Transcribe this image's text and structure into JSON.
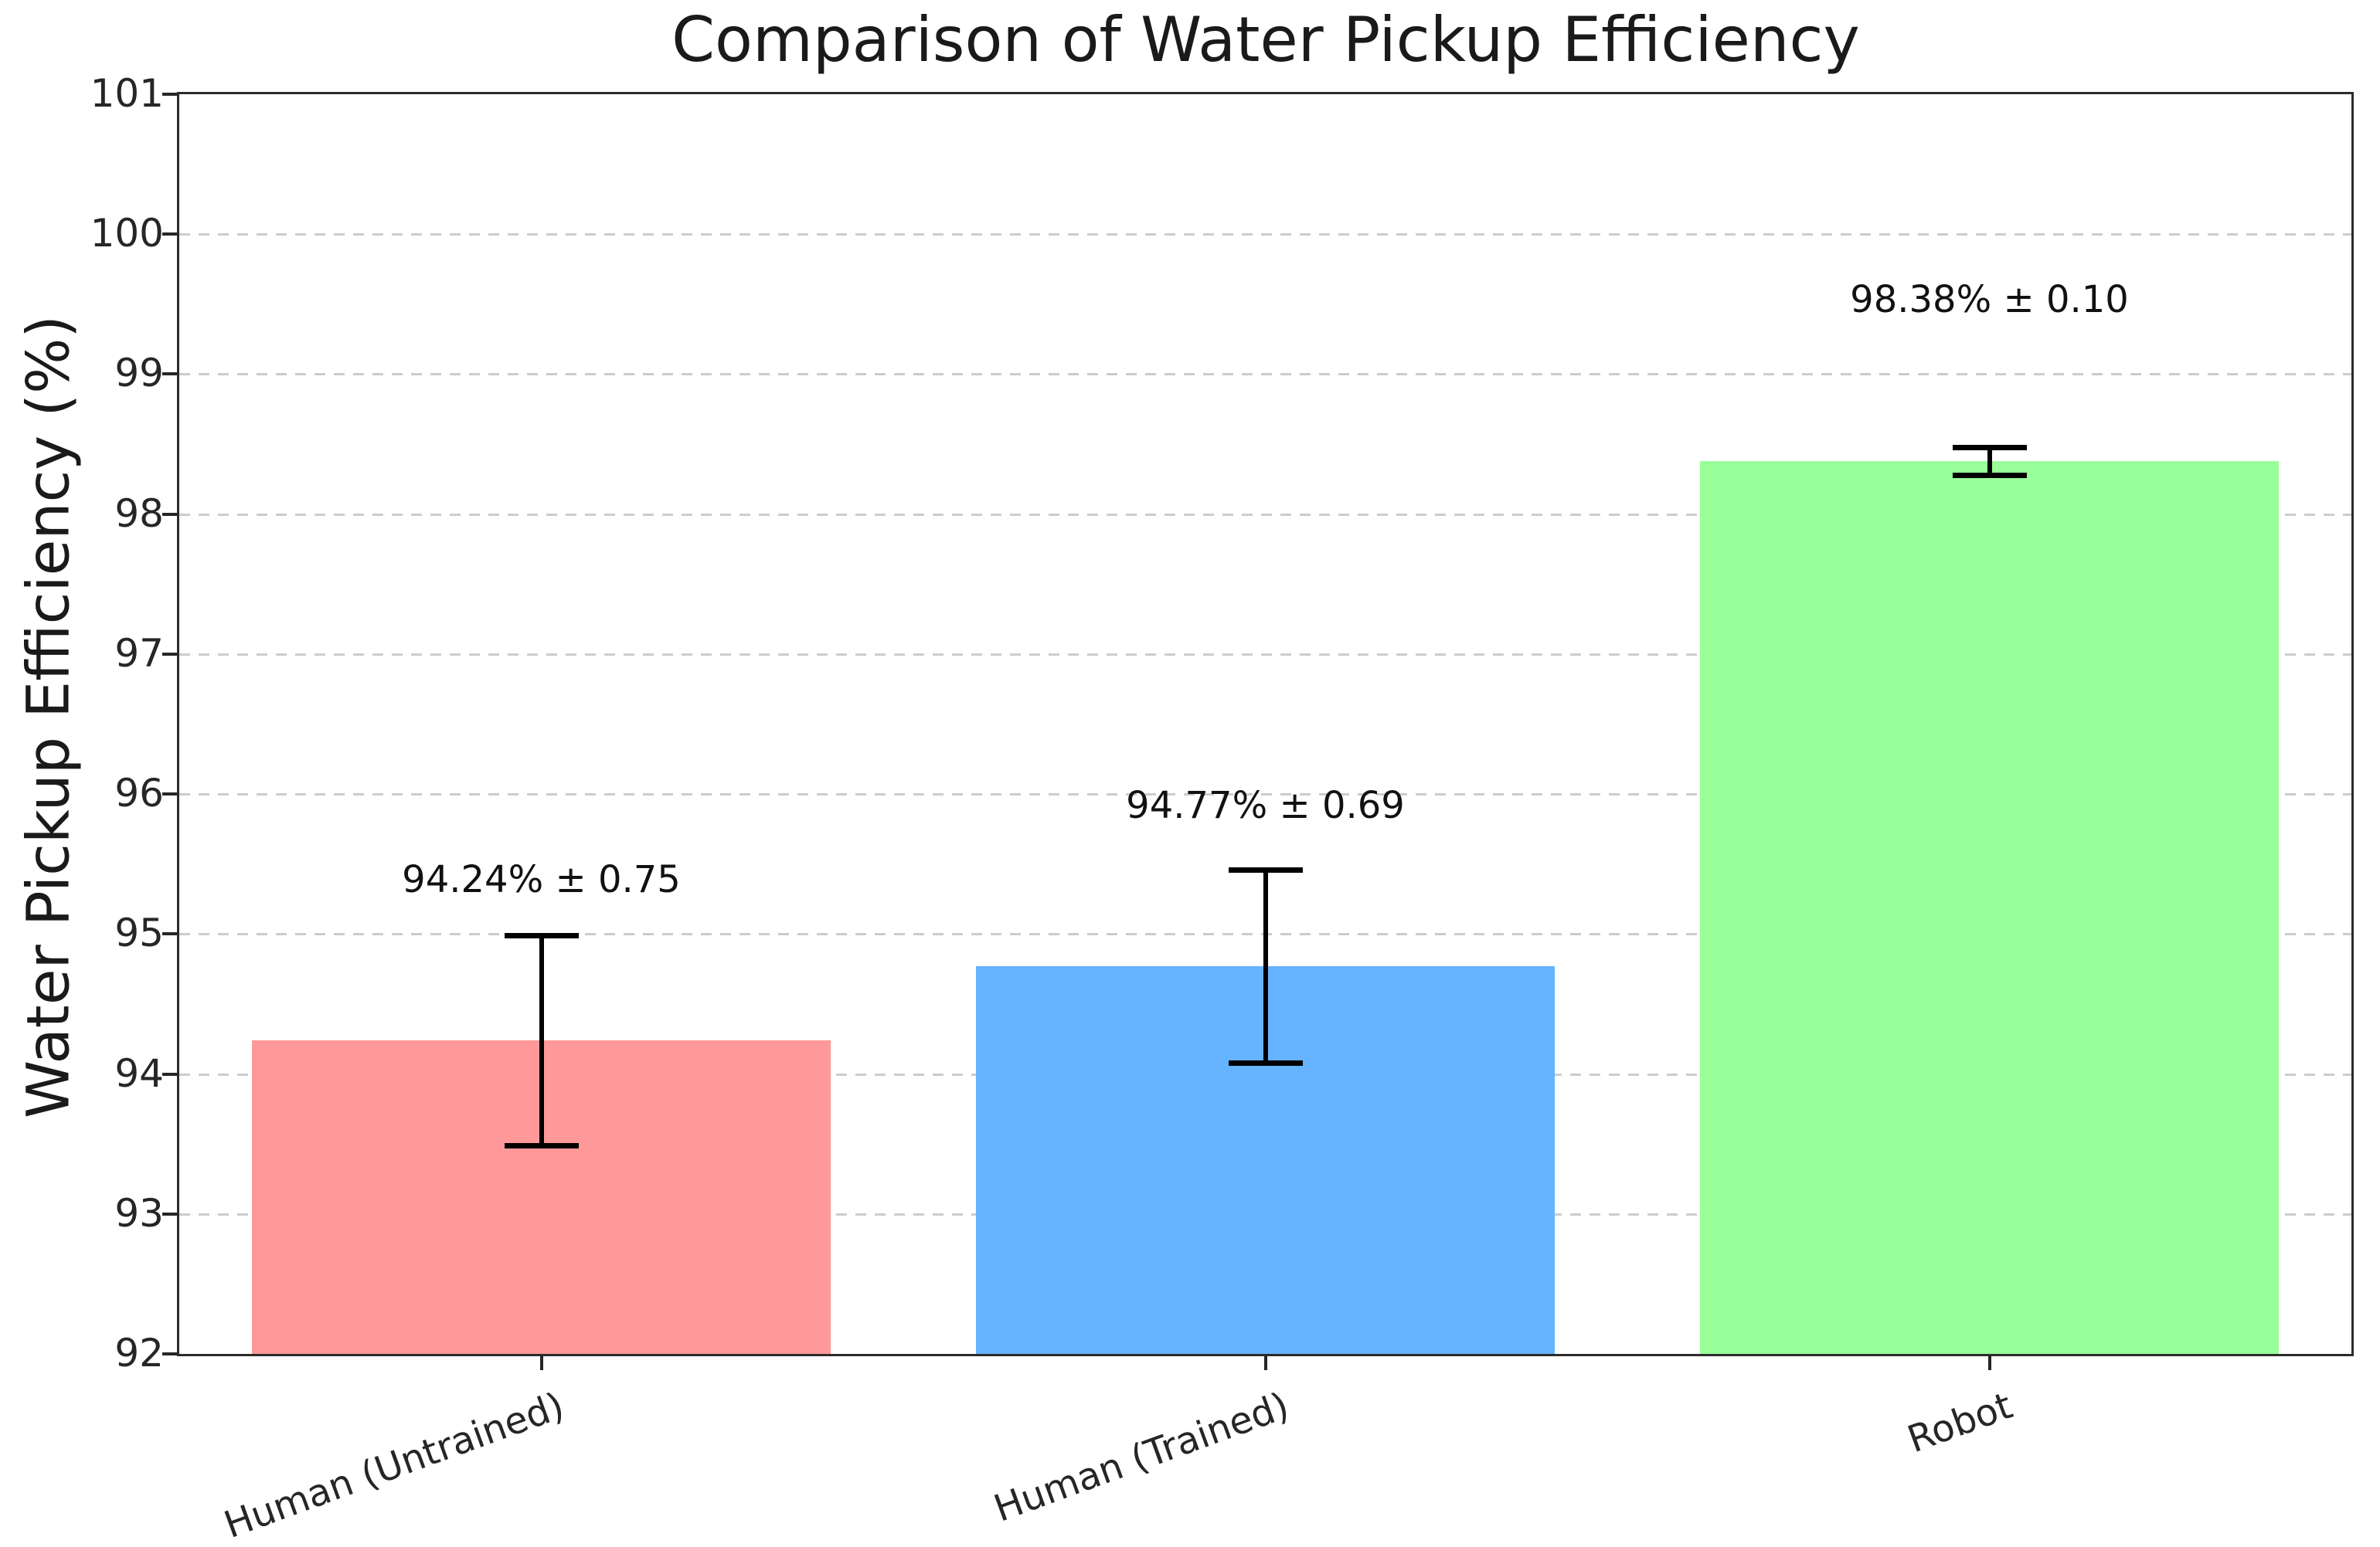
{
  "chart_data": {
    "type": "bar",
    "title": "Comparison of Water Pickup Efficiency",
    "ylabel": "Water Pickup Efficiency (%)",
    "xlabel": "",
    "categories": [
      "Human (Untrained)",
      "Human (Trained)",
      "Robot"
    ],
    "values": [
      94.24,
      94.77,
      98.38
    ],
    "errors": [
      0.75,
      0.69,
      0.1
    ],
    "bar_labels": [
      "94.24% ± 0.75",
      "94.77% ± 0.69",
      "98.38% ± 0.10"
    ],
    "bar_colors": [
      "#ff9999",
      "#66b3ff",
      "#99ff99"
    ],
    "error_bar_color": "#000000",
    "ylim": [
      92,
      101
    ],
    "yticks": [
      92,
      93,
      94,
      95,
      96,
      97,
      98,
      99,
      100,
      101
    ],
    "ytick_labels": [
      "92",
      "93",
      "94",
      "95",
      "96",
      "97",
      "98",
      "99",
      "100",
      "101"
    ],
    "grid": {
      "axis": "y",
      "style": "dashed",
      "color": "#cccccc"
    },
    "xtick_rotation_deg": 20,
    "legend": "none"
  }
}
